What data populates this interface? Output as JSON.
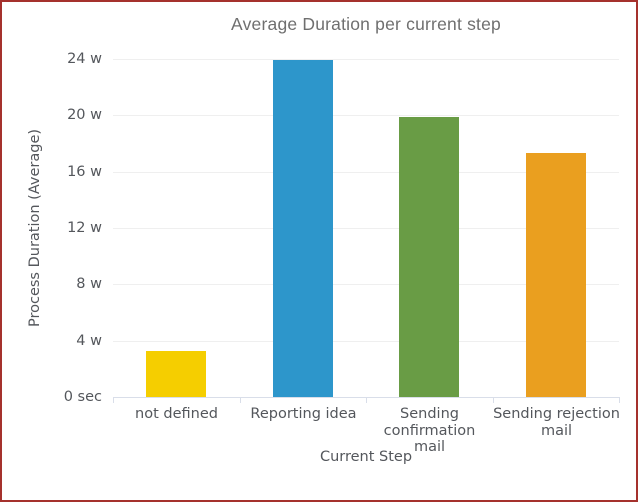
{
  "chart_data": {
    "type": "bar",
    "title": "Average Duration per current step",
    "xlabel": "Current Step",
    "ylabel": "Process Duration (Average)",
    "categories": [
      "not defined",
      "Reporting idea",
      "Sending confirmation mail",
      "Sending rejection mail"
    ],
    "values": [
      3.3,
      23.9,
      19.9,
      17.3
    ],
    "bar_colors": [
      "#f5ce00",
      "#2d96cb",
      "#699c45",
      "#ea9f1f"
    ],
    "y_ticks": [
      {
        "value": 0,
        "label": "0 sec"
      },
      {
        "value": 4,
        "label": "4 w"
      },
      {
        "value": 8,
        "label": "8 w"
      },
      {
        "value": 12,
        "label": "12 w"
      },
      {
        "value": 16,
        "label": "16 w"
      },
      {
        "value": 20,
        "label": "20 w"
      },
      {
        "value": 24,
        "label": "24 w"
      }
    ],
    "ylim": [
      0,
      24
    ],
    "grid": true,
    "legend": false
  },
  "frame": {
    "border_color": "#a5312d",
    "background_color": "#ffffff"
  },
  "colors": {
    "title_text": "#6f6f6f",
    "axis_text": "#54575c",
    "gridline": "#efefef",
    "axis_line": "#d9dee9"
  }
}
